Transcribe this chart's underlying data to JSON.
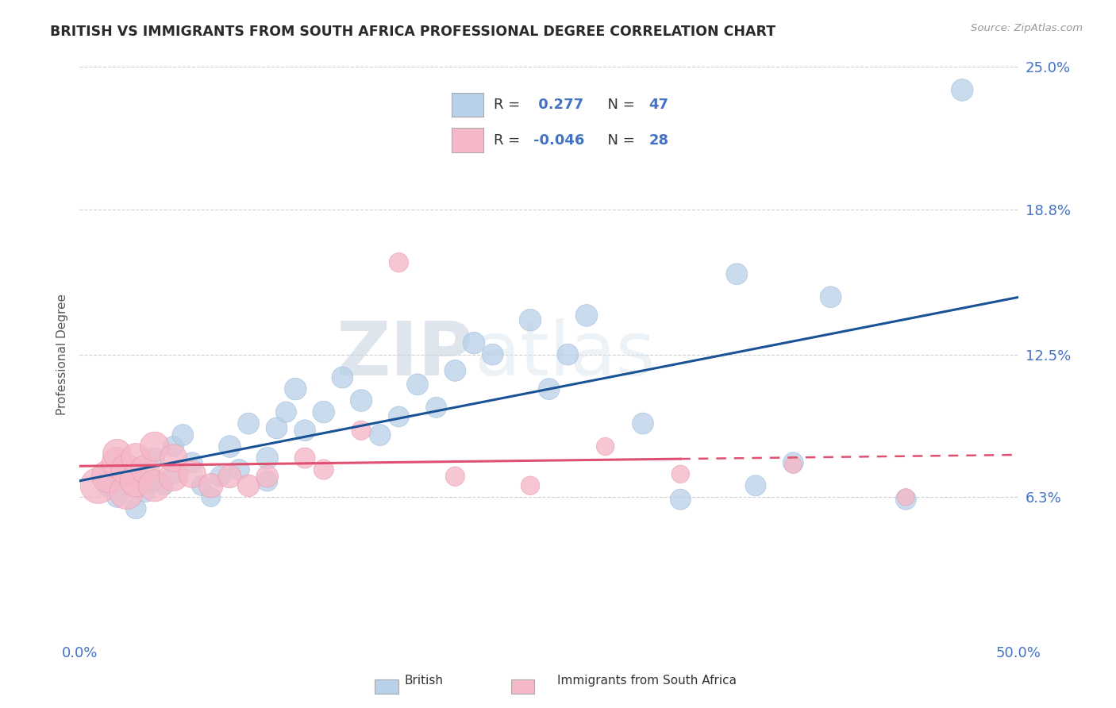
{
  "title": "BRITISH VS IMMIGRANTS FROM SOUTH AFRICA PROFESSIONAL DEGREE CORRELATION CHART",
  "source": "Source: ZipAtlas.com",
  "ylabel": "Professional Degree",
  "xlim": [
    0.0,
    0.5
  ],
  "ylim": [
    0.0,
    0.25
  ],
  "ytick_right_labels": [
    "6.3%",
    "12.5%",
    "18.8%",
    "25.0%"
  ],
  "ytick_right_values": [
    0.063,
    0.125,
    0.188,
    0.25
  ],
  "R_british": 0.277,
  "N_british": 47,
  "R_immigrants": -0.046,
  "N_immigrants": 28,
  "british_color": "#b8d0e8",
  "british_edge_color": "#9ab8d8",
  "british_line_color": "#1a5296",
  "immigrants_color": "#f5b8c8",
  "immigrants_edge_color": "#e898b0",
  "immigrants_line_color": "#e05070",
  "legend_british": "British",
  "legend_immigrants": "Immigrants from South Africa",
  "watermark_zip": "ZIP",
  "watermark_atlas": "atlas",
  "british_x": [
    0.015,
    0.02,
    0.025,
    0.03,
    0.03,
    0.035,
    0.04,
    0.04,
    0.045,
    0.05,
    0.05,
    0.055,
    0.06,
    0.065,
    0.07,
    0.075,
    0.08,
    0.085,
    0.09,
    0.1,
    0.1,
    0.105,
    0.11,
    0.115,
    0.12,
    0.13,
    0.14,
    0.15,
    0.16,
    0.17,
    0.18,
    0.19,
    0.2,
    0.21,
    0.22,
    0.24,
    0.25,
    0.26,
    0.27,
    0.3,
    0.32,
    0.35,
    0.36,
    0.38,
    0.4,
    0.44,
    0.47
  ],
  "british_y": [
    0.068,
    0.063,
    0.072,
    0.058,
    0.075,
    0.065,
    0.08,
    0.07,
    0.068,
    0.085,
    0.073,
    0.09,
    0.078,
    0.068,
    0.063,
    0.072,
    0.085,
    0.075,
    0.095,
    0.08,
    0.07,
    0.093,
    0.1,
    0.11,
    0.092,
    0.1,
    0.115,
    0.105,
    0.09,
    0.098,
    0.112,
    0.102,
    0.118,
    0.13,
    0.125,
    0.14,
    0.11,
    0.125,
    0.142,
    0.095,
    0.062,
    0.16,
    0.068,
    0.078,
    0.15,
    0.062,
    0.24
  ],
  "british_sizes": [
    18,
    16,
    14,
    16,
    18,
    14,
    16,
    15,
    14,
    16,
    15,
    17,
    16,
    15,
    14,
    16,
    18,
    16,
    17,
    18,
    16,
    17,
    16,
    18,
    17,
    18,
    17,
    18,
    17,
    16,
    17,
    16,
    17,
    18,
    17,
    18,
    17,
    17,
    18,
    17,
    16,
    17,
    16,
    16,
    17,
    16,
    18
  ],
  "immigrants_x": [
    0.01,
    0.015,
    0.02,
    0.02,
    0.025,
    0.025,
    0.03,
    0.03,
    0.035,
    0.04,
    0.04,
    0.05,
    0.05,
    0.06,
    0.07,
    0.08,
    0.09,
    0.1,
    0.12,
    0.13,
    0.15,
    0.17,
    0.2,
    0.24,
    0.28,
    0.32,
    0.38,
    0.44
  ],
  "immigrants_y": [
    0.068,
    0.072,
    0.078,
    0.082,
    0.065,
    0.075,
    0.07,
    0.08,
    0.075,
    0.068,
    0.085,
    0.072,
    0.08,
    0.073,
    0.068,
    0.072,
    0.068,
    0.072,
    0.08,
    0.075,
    0.092,
    0.165,
    0.072,
    0.068,
    0.085,
    0.073,
    0.077,
    0.063
  ],
  "immigrants_sizes": [
    48,
    38,
    35,
    30,
    42,
    35,
    38,
    32,
    30,
    38,
    32,
    32,
    28,
    28,
    22,
    20,
    18,
    18,
    16,
    15,
    14,
    14,
    14,
    13,
    12,
    12,
    11,
    11
  ],
  "grid_color": "#d0d0d0",
  "background_color": "#ffffff",
  "title_color": "#2a2a2a",
  "axis_label_color": "#555555",
  "tick_color_blue": "#4472c4",
  "legend_label_color": "#333333",
  "legend_value_color": "#4472c4"
}
